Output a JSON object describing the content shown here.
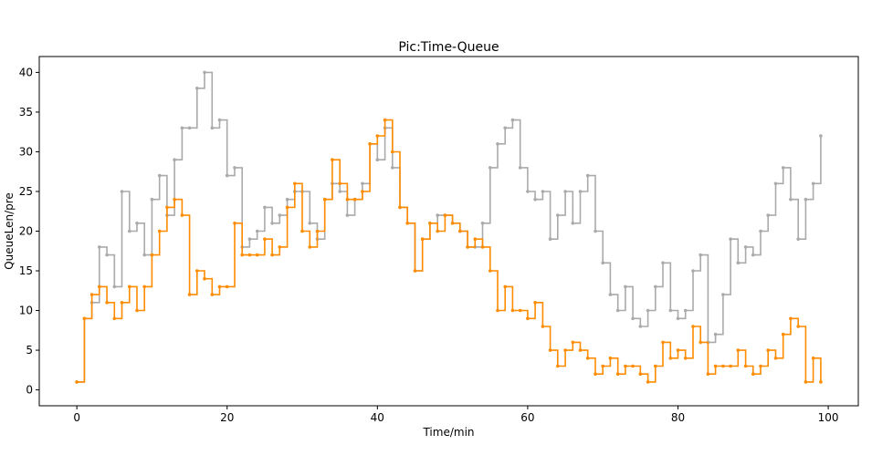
{
  "chart_data": {
    "type": "line",
    "title": "Pic:Time-Queue",
    "xlabel": "Time/min",
    "ylabel": "QueueLen/pre",
    "xlim": [
      -5,
      104
    ],
    "ylim": [
      -2,
      42
    ],
    "xticks": [
      0,
      20,
      40,
      60,
      80,
      100
    ],
    "yticks": [
      0,
      5,
      10,
      15,
      20,
      25,
      30,
      35,
      40
    ],
    "grid": false,
    "legend": "none",
    "style": "step lines with small dot markers",
    "series": [
      {
        "color": "#aaaaaa",
        "x": [
          0,
          1,
          2,
          3,
          4,
          5,
          6,
          7,
          8,
          9,
          10,
          11,
          12,
          13,
          14,
          15,
          16,
          17,
          18,
          19,
          20,
          21,
          22,
          23,
          24,
          25,
          26,
          27,
          28,
          29,
          30,
          31,
          32,
          33,
          34,
          35,
          36,
          37,
          38,
          39,
          40,
          41,
          42,
          43,
          44,
          45,
          46,
          47,
          48,
          49,
          50,
          51,
          52,
          53,
          54,
          55,
          56,
          57,
          58,
          59,
          60,
          61,
          62,
          63,
          64,
          65,
          66,
          67,
          68,
          69,
          70,
          71,
          72,
          73,
          74,
          75,
          76,
          77,
          78,
          79,
          80,
          81,
          82,
          83,
          84,
          85,
          86,
          87,
          88,
          89,
          90,
          91,
          92,
          93,
          94,
          95,
          96,
          97,
          98,
          99
        ],
        "y": [
          1,
          9,
          11,
          18,
          17,
          13,
          25,
          20,
          21,
          17,
          24,
          27,
          22,
          29,
          33,
          33,
          38,
          40,
          33,
          34,
          27,
          28,
          18,
          19,
          20,
          23,
          21,
          22,
          24,
          25,
          25,
          21,
          19,
          24,
          26,
          25,
          22,
          24,
          26,
          31,
          29,
          33,
          28,
          23,
          21,
          15,
          19,
          21,
          22,
          22,
          21,
          20,
          18,
          18,
          21,
          28,
          31,
          33,
          34,
          28,
          25,
          24,
          25,
          19,
          22,
          25,
          21,
          25,
          27,
          20,
          16,
          12,
          10,
          13,
          9,
          8,
          10,
          13,
          16,
          10,
          9,
          10,
          15,
          17,
          6,
          7,
          12,
          19,
          16,
          18,
          17,
          20,
          22,
          26,
          28,
          24,
          19,
          24,
          26,
          32
        ]
      },
      {
        "color": "#ff8c00",
        "x": [
          0,
          1,
          2,
          3,
          4,
          5,
          6,
          7,
          8,
          9,
          10,
          11,
          12,
          13,
          14,
          15,
          16,
          17,
          18,
          19,
          20,
          21,
          22,
          23,
          24,
          25,
          26,
          27,
          28,
          29,
          30,
          31,
          32,
          33,
          34,
          35,
          36,
          37,
          38,
          39,
          40,
          41,
          42,
          43,
          44,
          45,
          46,
          47,
          48,
          49,
          50,
          51,
          52,
          53,
          54,
          55,
          56,
          57,
          58,
          59,
          60,
          61,
          62,
          63,
          64,
          65,
          66,
          67,
          68,
          69,
          70,
          71,
          72,
          73,
          74,
          75,
          76,
          77,
          78,
          79,
          80,
          81,
          82,
          83,
          84,
          85,
          86,
          87,
          88,
          89,
          90,
          91,
          92,
          93,
          94,
          95,
          96,
          97,
          98,
          99
        ],
        "y": [
          1,
          9,
          12,
          13,
          11,
          9,
          11,
          13,
          10,
          13,
          17,
          20,
          23,
          24,
          22,
          12,
          15,
          14,
          12,
          13,
          13,
          21,
          17,
          17,
          17,
          19,
          17,
          18,
          23,
          26,
          20,
          18,
          20,
          24,
          29,
          26,
          24,
          24,
          25,
          31,
          32,
          34,
          30,
          23,
          21,
          15,
          19,
          21,
          20,
          22,
          21,
          20,
          18,
          19,
          18,
          15,
          10,
          13,
          10,
          10,
          9,
          11,
          8,
          5,
          3,
          5,
          6,
          5,
          4,
          2,
          3,
          4,
          2,
          3,
          3,
          2,
          1,
          3,
          6,
          4,
          5,
          4,
          8,
          6,
          2,
          3,
          3,
          3,
          5,
          3,
          2,
          3,
          5,
          4,
          7,
          9,
          8,
          1,
          4,
          1
        ]
      }
    ]
  }
}
